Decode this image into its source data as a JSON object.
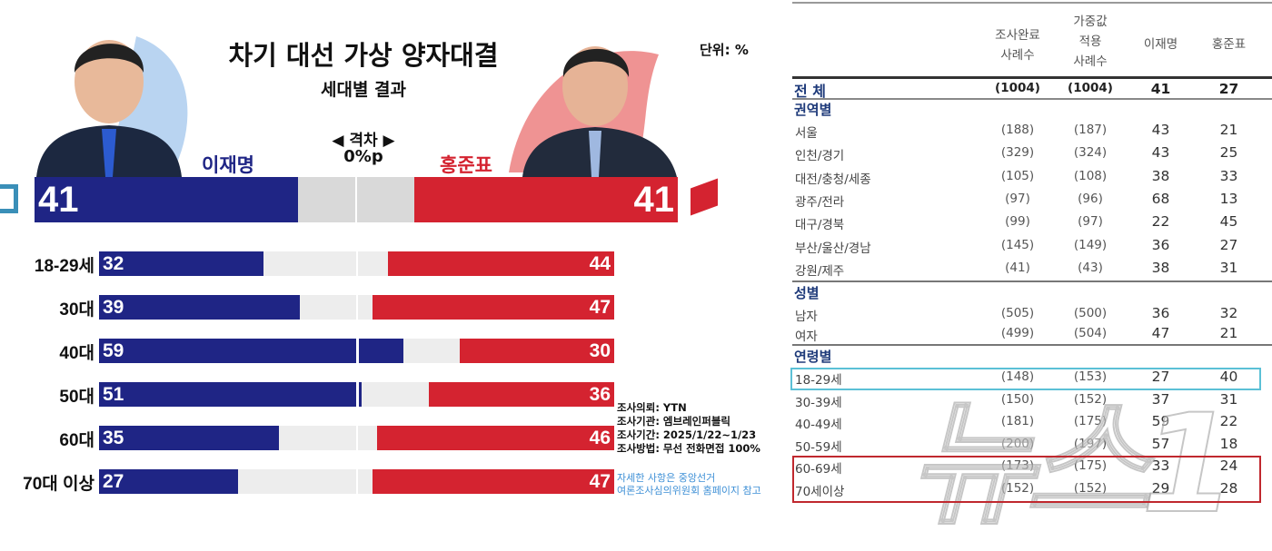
{
  "chart_data": {
    "type": "bar",
    "title": "차기 대선 가상 양자대결",
    "subtitle": "세대별 결과",
    "unit_label": "단위: %",
    "gap_label": "◀ 격차 ▶",
    "gap_value": "0%p",
    "candidates": [
      {
        "name": "이재명",
        "color": "#1f2585"
      },
      {
        "name": "홍준표",
        "color": "#d42330"
      }
    ],
    "overall": {
      "values": [
        41,
        41
      ]
    },
    "categories": [
      "18-29세",
      "30대",
      "40대",
      "50대",
      "60대",
      "70대 이상"
    ],
    "series": [
      {
        "name": "이재명",
        "values": [
          32,
          39,
          59,
          51,
          35,
          27
        ]
      },
      {
        "name": "홍준표",
        "values": [
          44,
          47,
          30,
          36,
          46,
          47
        ]
      }
    ],
    "xlim": [
      0,
      100
    ],
    "notes": [
      "조사의뢰: YTN",
      "조사기관: 엠브레인퍼블릭",
      "조사기간: 2025/1/22~1/23",
      "조사방법: 무선 전화면접 100%"
    ],
    "reference": [
      "자세한 사항은 중앙선거",
      "여론조사심의위원회 홈페이지 참고"
    ],
    "track_color": "#ebebeb"
  },
  "table": {
    "headers": [
      [
        "조사완료",
        "사례수"
      ],
      [
        "가중값",
        "적용",
        "사례수"
      ],
      [
        "이재명"
      ],
      [
        "홍준표"
      ]
    ],
    "total": {
      "label": "전 체",
      "values": [
        "(1004)",
        "(1004)",
        "41",
        "27"
      ]
    },
    "sections": [
      {
        "title": "권역별",
        "rows": [
          {
            "label": "서울",
            "values": [
              "(188)",
              "(187)",
              "43",
              "21"
            ]
          },
          {
            "label": "인천/경기",
            "values": [
              "(329)",
              "(324)",
              "43",
              "25"
            ]
          },
          {
            "label": "대전/충청/세종",
            "values": [
              "(105)",
              "(108)",
              "38",
              "33"
            ]
          },
          {
            "label": "광주/전라",
            "values": [
              "(97)",
              "(96)",
              "68",
              "13"
            ]
          },
          {
            "label": "대구/경북",
            "values": [
              "(99)",
              "(97)",
              "22",
              "45"
            ]
          },
          {
            "label": "부산/울산/경남",
            "values": [
              "(145)",
              "(149)",
              "36",
              "27"
            ]
          },
          {
            "label": "강원/제주",
            "values": [
              "(41)",
              "(43)",
              "38",
              "31"
            ]
          }
        ]
      },
      {
        "title": "성별",
        "rows": [
          {
            "label": "남자",
            "values": [
              "(505)",
              "(500)",
              "36",
              "32"
            ]
          },
          {
            "label": "여자",
            "values": [
              "(499)",
              "(504)",
              "47",
              "21"
            ]
          }
        ]
      },
      {
        "title": "연령별",
        "rows": [
          {
            "label": "18-29세",
            "values": [
              "(148)",
              "(153)",
              "27",
              "40"
            ],
            "highlight": "#5bc0d6"
          },
          {
            "label": "30-39세",
            "values": [
              "(150)",
              "(152)",
              "37",
              "31"
            ]
          },
          {
            "label": "40-49세",
            "values": [
              "(181)",
              "(175)",
              "59",
              "22"
            ]
          },
          {
            "label": "50-59세",
            "values": [
              "(200)",
              "(197)",
              "57",
              "18"
            ]
          },
          {
            "label": "60-69세",
            "values": [
              "(173)",
              "(175)",
              "33",
              "24"
            ],
            "highlight": "#c0282e"
          },
          {
            "label": "70세이상",
            "values": [
              "(152)",
              "(152)",
              "29",
              "28"
            ],
            "highlight": "#c0282e"
          }
        ]
      }
    ]
  },
  "watermark": "뉴스1"
}
